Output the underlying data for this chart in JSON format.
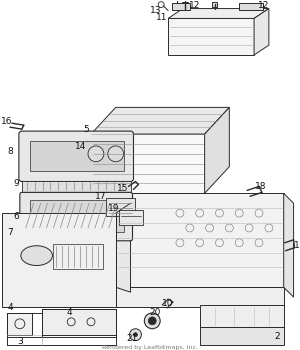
{
  "watermark": "Rendered by Leafbitmaps, Inc.",
  "bg_color": "#f0f0f0",
  "line_color": "#2a2a2a",
  "label_color": "#111111",
  "label_fontsize": 6.5,
  "watermark_fontsize": 4.5
}
